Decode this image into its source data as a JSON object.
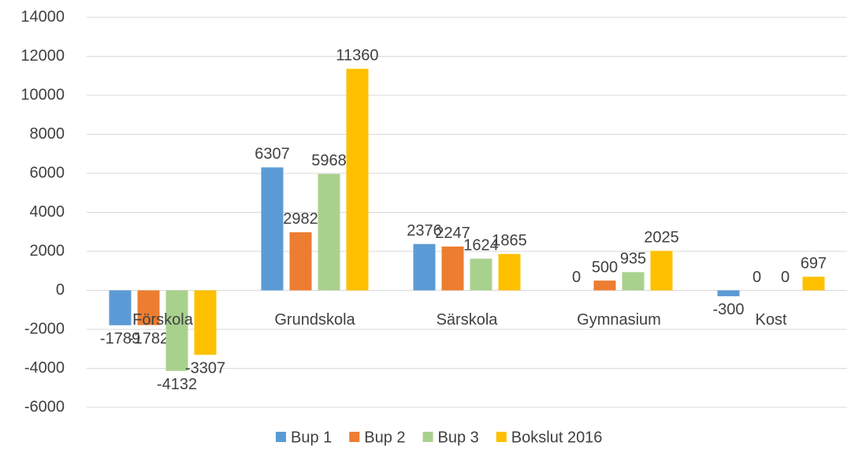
{
  "chart_data": {
    "type": "bar",
    "categories": [
      "Förskola",
      "Grundskola",
      "Särskola",
      "Gymnasium",
      "Kost"
    ],
    "series": [
      {
        "name": "Bup 1",
        "color": "#5b9bd5",
        "values": [
          -1789,
          6307,
          2376,
          0,
          -300
        ]
      },
      {
        "name": "Bup 2",
        "color": "#ed7d31",
        "values": [
          -1782,
          2982,
          2247,
          500,
          0
        ]
      },
      {
        "name": "Bup 3",
        "color": "#a9d18e",
        "values": [
          -4132,
          5968,
          1624,
          935,
          0
        ]
      },
      {
        "name": "Bokslut 2016",
        "color": "#ffc000",
        "values": [
          -3307,
          11360,
          1865,
          2025,
          697
        ]
      }
    ],
    "ylim": [
      -6000,
      14000
    ],
    "yticks": [
      -6000,
      -4000,
      -2000,
      0,
      2000,
      4000,
      6000,
      8000,
      10000,
      12000,
      14000
    ],
    "grid": true,
    "legend": "bottom"
  }
}
